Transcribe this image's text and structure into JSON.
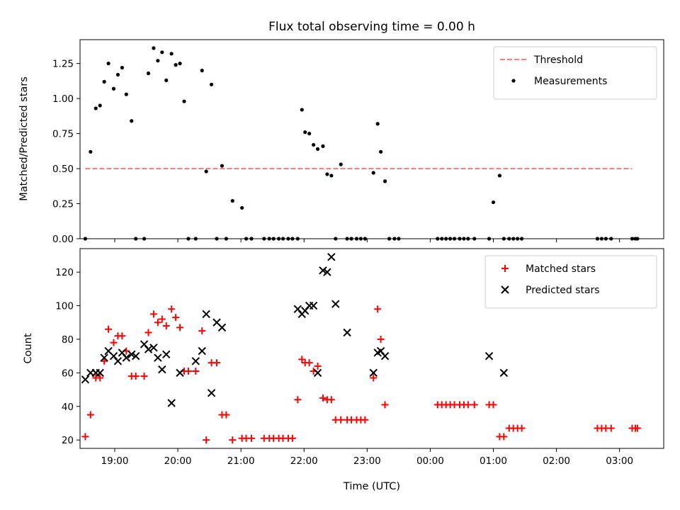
{
  "chart_data": [
    {
      "type": "scatter",
      "title": "Flux total observing time = 0.00 h",
      "xlabel": "",
      "ylabel": "Matched/Predicted stars",
      "xlim": [
        "18:27",
        "03:42"
      ],
      "ylim": [
        0,
        1.42
      ],
      "yticks": [
        "0.00",
        "0.25",
        "0.50",
        "0.75",
        "1.00",
        "1.25"
      ],
      "xticks": [
        "19:00",
        "20:00",
        "21:00",
        "22:00",
        "23:00",
        "00:00",
        "01:00",
        "02:00",
        "03:00"
      ],
      "show_xticklabels": false,
      "legend_position": "upper right",
      "threshold": {
        "name": "Threshold",
        "value": 0.5,
        "x_start": "18:32",
        "x_end": "03:12",
        "color": "#ff7f7f",
        "style": "dashed"
      },
      "series": [
        {
          "name": "Measurements",
          "marker": "dot",
          "color": "#000000",
          "x": [
            "18:32",
            "18:37",
            "18:42",
            "18:46",
            "18:50",
            "18:54",
            "18:59",
            "19:03",
            "19:07",
            "19:11",
            "19:16",
            "19:20",
            "19:28",
            "19:32",
            "19:37",
            "19:41",
            "19:45",
            "19:49",
            "19:54",
            "19:58",
            "20:02",
            "20:06",
            "20:10",
            "20:17",
            "20:23",
            "20:27",
            "20:32",
            "20:37",
            "20:42",
            "20:46",
            "20:52",
            "21:01",
            "21:05",
            "21:10",
            "21:22",
            "21:27",
            "21:31",
            "21:36",
            "21:40",
            "21:45",
            "21:49",
            "21:54",
            "21:58",
            "22:01",
            "22:05",
            "22:09",
            "22:13",
            "22:18",
            "22:22",
            "22:26",
            "22:30",
            "22:35",
            "22:41",
            "22:45",
            "22:50",
            "22:54",
            "22:58",
            "23:06",
            "23:10",
            "23:13",
            "23:17",
            "23:21",
            "23:26",
            "23:30",
            "00:07",
            "00:11",
            "00:15",
            "00:19",
            "00:23",
            "00:28",
            "00:32",
            "00:36",
            "00:42",
            "00:56",
            "01:00",
            "01:06",
            "01:10",
            "01:15",
            "01:19",
            "01:23",
            "01:27",
            "02:39",
            "02:43",
            "02:47",
            "02:52",
            "03:12",
            "03:15",
            "03:17"
          ],
          "y": [
            0.0,
            0.62,
            0.93,
            0.95,
            1.12,
            1.25,
            1.07,
            1.17,
            1.22,
            1.03,
            0.84,
            0.0,
            0.0,
            1.18,
            1.36,
            1.27,
            1.33,
            1.13,
            1.32,
            1.24,
            1.25,
            0.98,
            0.0,
            0.0,
            1.2,
            0.48,
            1.1,
            0.0,
            0.52,
            0.0,
            0.27,
            0.22,
            0.0,
            0.0,
            0.0,
            0.0,
            0.0,
            0.0,
            0.0,
            0.0,
            0.0,
            0.0,
            0.92,
            0.76,
            0.75,
            0.67,
            0.64,
            0.66,
            0.46,
            0.45,
            0.0,
            0.53,
            0.0,
            0.0,
            0.0,
            0.0,
            0.0,
            0.47,
            0.82,
            0.62,
            0.41,
            0.0,
            0.0,
            0.0,
            0.0,
            0.0,
            0.0,
            0.0,
            0.0,
            0.0,
            0.0,
            0.0,
            0.0,
            0.0,
            0.26,
            0.45,
            0.0,
            0.0,
            0.0,
            0.0,
            0.0,
            0.0,
            0.0,
            0.0,
            0.0,
            0.0,
            0.0,
            0.0
          ]
        }
      ]
    },
    {
      "type": "scatter",
      "title": "",
      "xlabel": "Time (UTC)",
      "ylabel": "Count",
      "xlim": [
        "18:27",
        "03:42"
      ],
      "ylim": [
        15,
        134
      ],
      "yticks": [
        "20",
        "40",
        "60",
        "80",
        "100",
        "120"
      ],
      "xticks": [
        "19:00",
        "20:00",
        "21:00",
        "22:00",
        "23:00",
        "00:00",
        "01:00",
        "02:00",
        "03:00"
      ],
      "legend_position": "upper right",
      "series": [
        {
          "name": "Matched stars",
          "marker": "plus",
          "color": "#ff0000",
          "x": [
            "18:32",
            "18:37",
            "18:42",
            "18:46",
            "18:50",
            "18:54",
            "18:59",
            "19:03",
            "19:07",
            "19:11",
            "19:16",
            "19:20",
            "19:28",
            "19:32",
            "19:37",
            "19:41",
            "19:45",
            "19:49",
            "19:54",
            "19:58",
            "20:02",
            "20:06",
            "20:10",
            "20:17",
            "20:23",
            "20:27",
            "20:32",
            "20:37",
            "20:42",
            "20:46",
            "20:52",
            "21:01",
            "21:05",
            "21:10",
            "21:22",
            "21:27",
            "21:31",
            "21:36",
            "21:40",
            "21:45",
            "21:49",
            "21:54",
            "21:58",
            "22:01",
            "22:05",
            "22:09",
            "22:13",
            "22:18",
            "22:22",
            "22:26",
            "22:30",
            "22:35",
            "22:41",
            "22:45",
            "22:50",
            "22:54",
            "22:58",
            "23:06",
            "23:10",
            "23:13",
            "23:17",
            "00:07",
            "00:11",
            "00:15",
            "00:19",
            "00:23",
            "00:28",
            "00:32",
            "00:36",
            "00:42",
            "00:56",
            "01:00",
            "01:06",
            "01:10",
            "01:15",
            "01:19",
            "01:23",
            "01:27",
            "02:39",
            "02:43",
            "02:47",
            "02:52",
            "03:12",
            "03:15",
            "03:17"
          ],
          "y": [
            22,
            35,
            57,
            57,
            67,
            86,
            78,
            82,
            82,
            73,
            58,
            58,
            58,
            84,
            95,
            90,
            92,
            88,
            98,
            93,
            87,
            61,
            61,
            61,
            85,
            20,
            66,
            66,
            35,
            35,
            20,
            21,
            21,
            21,
            21,
            21,
            21,
            21,
            21,
            21,
            21,
            44,
            68,
            66,
            66,
            61,
            64,
            45,
            44,
            44,
            32,
            32,
            32,
            32,
            32,
            32,
            32,
            57,
            98,
            80,
            41,
            41,
            41,
            41,
            41,
            41,
            41,
            41,
            41,
            41,
            41,
            41,
            22,
            22,
            27,
            27,
            27,
            27,
            27,
            27,
            27,
            27,
            27,
            27,
            27
          ]
        },
        {
          "name": "Predicted stars",
          "marker": "x",
          "color": "#000000",
          "x": [
            "18:32",
            "18:37",
            "18:42",
            "18:46",
            "18:50",
            "18:54",
            "18:59",
            "19:03",
            "19:07",
            "19:11",
            "19:16",
            "19:20",
            "19:28",
            "19:32",
            "19:37",
            "19:41",
            "19:45",
            "19:49",
            "19:54",
            "20:02",
            "20:17",
            "20:23",
            "20:27",
            "20:32",
            "20:37",
            "20:42",
            "21:54",
            "21:58",
            "22:01",
            "22:05",
            "22:09",
            "22:13",
            "22:18",
            "22:22",
            "22:26",
            "22:30",
            "22:41",
            "23:06",
            "23:10",
            "23:13",
            "23:17",
            "00:56",
            "01:10"
          ],
          "y": [
            56,
            60,
            60,
            60,
            69,
            73,
            70,
            67,
            72,
            69,
            71,
            70,
            77,
            74,
            75,
            69,
            62,
            71,
            42,
            60,
            67,
            73,
            95,
            48,
            90,
            87,
            98,
            95,
            97,
            100,
            100,
            60,
            121,
            120,
            129,
            101,
            84,
            60,
            72,
            73,
            70,
            70,
            60
          ]
        }
      ]
    }
  ]
}
